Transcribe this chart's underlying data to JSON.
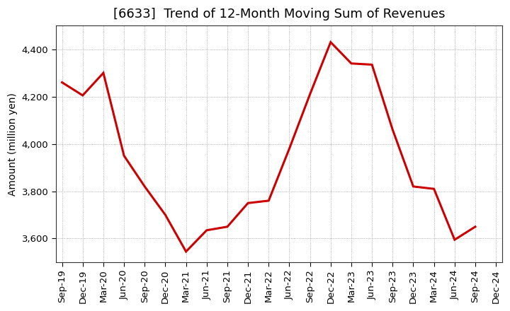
{
  "title": "[6633]  Trend of 12-Month Moving Sum of Revenues",
  "ylabel": "Amount (million yen)",
  "background_color": "#ffffff",
  "plot_bg_color": "#ffffff",
  "grid_color": "#999999",
  "line_color": "#cc0000",
  "line_width": 2.2,
  "x_labels": [
    "Sep-19",
    "Dec-19",
    "Mar-20",
    "Jun-20",
    "Sep-20",
    "Dec-20",
    "Mar-21",
    "Jun-21",
    "Sep-21",
    "Dec-21",
    "Mar-22",
    "Jun-22",
    "Sep-22",
    "Dec-22",
    "Mar-23",
    "Jun-23",
    "Sep-23",
    "Dec-23",
    "Mar-24",
    "Jun-24",
    "Sep-24",
    "Dec-24"
  ],
  "values": [
    4260,
    4205,
    4300,
    3950,
    3820,
    3700,
    3545,
    3635,
    3650,
    3750,
    3760,
    3980,
    4210,
    4430,
    4340,
    4335,
    4060,
    3820,
    3810,
    3595,
    3650,
    null
  ],
  "ylim": [
    3500,
    4500
  ],
  "yticks": [
    3600,
    3800,
    4000,
    4200,
    4400
  ],
  "title_fontsize": 13,
  "ylabel_fontsize": 10,
  "tick_fontsize": 9.5
}
